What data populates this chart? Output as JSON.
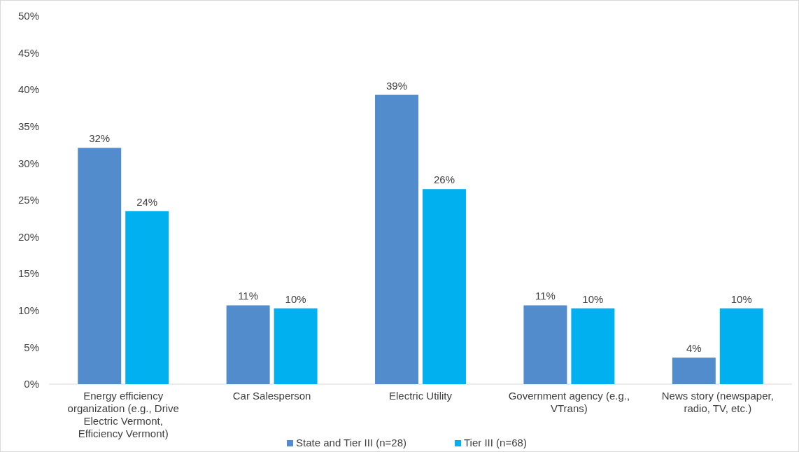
{
  "chart_data": {
    "type": "bar",
    "categories": [
      "Energy efficiency organization (e.g., Drive Electric Vermont, Efficiency Vermont)",
      "Car Salesperson",
      "Electric Utility",
      "Government agency (e.g., VTrans)",
      "News story (newspaper, radio, TV, etc.)"
    ],
    "series": [
      {
        "name": "State and Tier III (n=28)",
        "color": "#538ccc",
        "values": [
          32.1,
          10.7,
          39.3,
          10.7,
          3.6
        ],
        "value_labels": [
          "32%",
          "11%",
          "39%",
          "11%",
          "4%"
        ]
      },
      {
        "name": "Tier III (n=68)",
        "color": "#00b0ef",
        "values": [
          23.5,
          10.3,
          26.5,
          10.3,
          10.3
        ],
        "value_labels": [
          "24%",
          "10%",
          "26%",
          "10%",
          "10%"
        ]
      }
    ],
    "ylim": [
      0,
      50
    ],
    "yticks": [
      {
        "value": 0,
        "label": "0%"
      },
      {
        "value": 5,
        "label": "5%"
      },
      {
        "value": 10,
        "label": "10%"
      },
      {
        "value": 15,
        "label": "15%"
      },
      {
        "value": 20,
        "label": "20%"
      },
      {
        "value": 25,
        "label": "25%"
      },
      {
        "value": 30,
        "label": "30%"
      },
      {
        "value": 35,
        "label": "35%"
      },
      {
        "value": 40,
        "label": "40%"
      },
      {
        "value": 45,
        "label": "45%"
      },
      {
        "value": 50,
        "label": "50%"
      }
    ],
    "legend": "bottom",
    "grid": false
  }
}
